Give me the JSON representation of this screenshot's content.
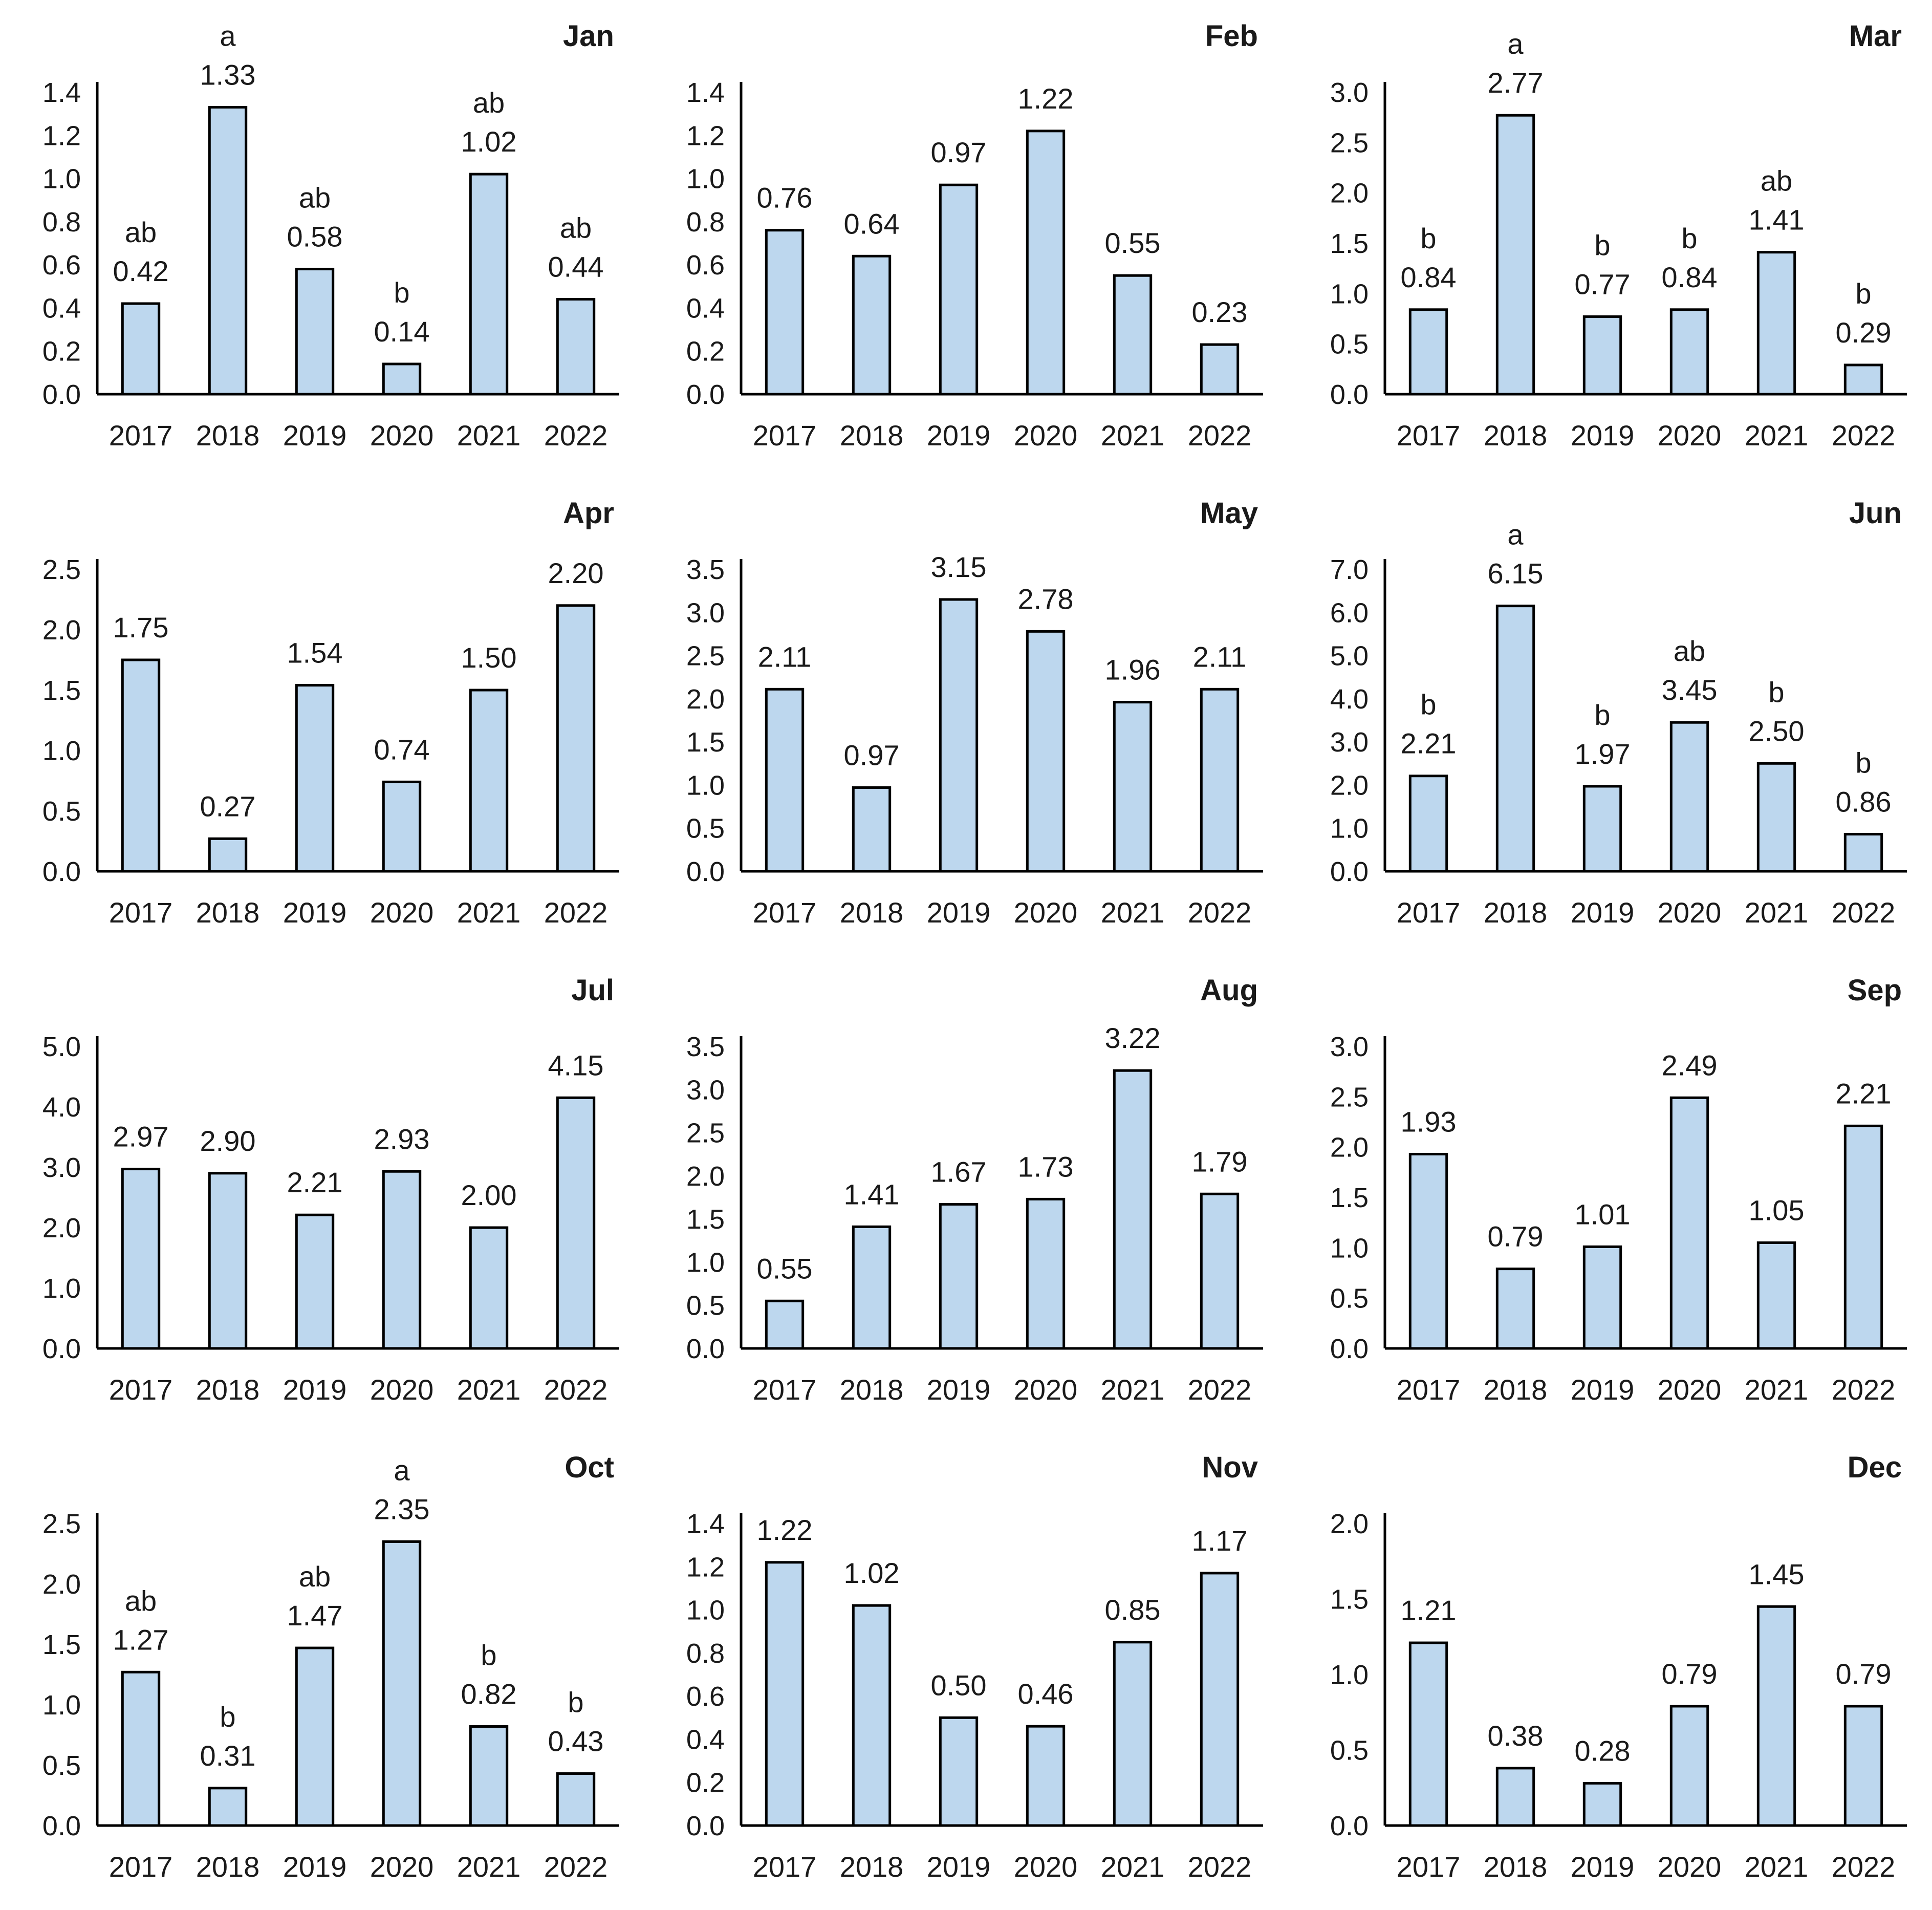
{
  "chart_data": [
    {
      "type": "bar",
      "title": "Jan",
      "categories": [
        "2017",
        "2018",
        "2019",
        "2020",
        "2021",
        "2022"
      ],
      "values": [
        0.42,
        1.33,
        0.58,
        0.14,
        1.02,
        0.44
      ],
      "value_labels": [
        "0.42",
        "1.33",
        "0.58",
        "0.14",
        "1.02",
        "0.44"
      ],
      "letters": [
        "ab",
        "a",
        "ab",
        "b",
        "ab",
        "ab"
      ],
      "ylim": [
        0,
        1.4
      ],
      "yticks": [
        "0.0",
        "0.2",
        "0.4",
        "0.6",
        "0.8",
        "1.0",
        "1.2",
        "1.4"
      ],
      "xlabel": "",
      "ylabel": ""
    },
    {
      "type": "bar",
      "title": "Feb",
      "categories": [
        "2017",
        "2018",
        "2019",
        "2020",
        "2021",
        "2022"
      ],
      "values": [
        0.76,
        0.64,
        0.97,
        1.22,
        0.55,
        0.23
      ],
      "value_labels": [
        "0.76",
        "0.64",
        "0.97",
        "1.22",
        "0.55",
        "0.23"
      ],
      "letters": [
        "",
        "",
        "",
        "",
        "",
        ""
      ],
      "ylim": [
        0,
        1.4
      ],
      "yticks": [
        "0.0",
        "0.2",
        "0.4",
        "0.6",
        "0.8",
        "1.0",
        "1.2",
        "1.4"
      ],
      "xlabel": "",
      "ylabel": ""
    },
    {
      "type": "bar",
      "title": "Mar",
      "categories": [
        "2017",
        "2018",
        "2019",
        "2020",
        "2021",
        "2022"
      ],
      "values": [
        0.84,
        2.77,
        0.77,
        0.84,
        1.41,
        0.29
      ],
      "value_labels": [
        "0.84",
        "2.77",
        "0.77",
        "0.84",
        "1.41",
        "0.29"
      ],
      "letters": [
        "b",
        "a",
        "b",
        "b",
        "ab",
        "b"
      ],
      "ylim": [
        0,
        3.0
      ],
      "yticks": [
        "0.0",
        "0.5",
        "1.0",
        "1.5",
        "2.0",
        "2.5",
        "3.0"
      ],
      "xlabel": "",
      "ylabel": ""
    },
    {
      "type": "bar",
      "title": "Apr",
      "categories": [
        "2017",
        "2018",
        "2019",
        "2020",
        "2021",
        "2022"
      ],
      "values": [
        1.75,
        0.27,
        1.54,
        0.74,
        1.5,
        2.2
      ],
      "value_labels": [
        "1.75",
        "0.27",
        "1.54",
        "0.74",
        "1.50",
        "2.20"
      ],
      "letters": [
        "",
        "",
        "",
        "",
        "",
        ""
      ],
      "ylim": [
        0,
        2.5
      ],
      "yticks": [
        "0.0",
        "0.5",
        "1.0",
        "1.5",
        "2.0",
        "2.5"
      ],
      "xlabel": "",
      "ylabel": ""
    },
    {
      "type": "bar",
      "title": "May",
      "categories": [
        "2017",
        "2018",
        "2019",
        "2020",
        "2021",
        "2022"
      ],
      "values": [
        2.11,
        0.97,
        3.15,
        2.78,
        1.96,
        2.11
      ],
      "value_labels": [
        "2.11",
        "0.97",
        "3.15",
        "2.78",
        "1.96",
        "2.11"
      ],
      "letters": [
        "",
        "",
        "",
        "",
        "",
        ""
      ],
      "ylim": [
        0,
        3.5
      ],
      "yticks": [
        "0.0",
        "0.5",
        "1.0",
        "1.5",
        "2.0",
        "2.5",
        "3.0",
        "3.5"
      ],
      "xlabel": "",
      "ylabel": ""
    },
    {
      "type": "bar",
      "title": "Jun",
      "categories": [
        "2017",
        "2018",
        "2019",
        "2020",
        "2021",
        "2022"
      ],
      "values": [
        2.21,
        6.15,
        1.97,
        3.45,
        2.5,
        0.86
      ],
      "value_labels": [
        "2.21",
        "6.15",
        "1.97",
        "3.45",
        "2.50",
        "0.86"
      ],
      "letters": [
        "b",
        "a",
        "b",
        "ab",
        "b",
        "b"
      ],
      "ylim": [
        0,
        7.0
      ],
      "yticks": [
        "0.0",
        "1.0",
        "2.0",
        "3.0",
        "4.0",
        "5.0",
        "6.0",
        "7.0"
      ],
      "xlabel": "",
      "ylabel": ""
    },
    {
      "type": "bar",
      "title": "Jul",
      "categories": [
        "2017",
        "2018",
        "2019",
        "2020",
        "2021",
        "2022"
      ],
      "values": [
        2.97,
        2.9,
        2.21,
        2.93,
        2.0,
        4.15
      ],
      "value_labels": [
        "2.97",
        "2.90",
        "2.21",
        "2.93",
        "2.00",
        "4.15"
      ],
      "letters": [
        "",
        "",
        "",
        "",
        "",
        ""
      ],
      "ylim": [
        0,
        5.0
      ],
      "yticks": [
        "0.0",
        "1.0",
        "2.0",
        "3.0",
        "4.0",
        "5.0"
      ],
      "xlabel": "",
      "ylabel": ""
    },
    {
      "type": "bar",
      "title": "Aug",
      "categories": [
        "2017",
        "2018",
        "2019",
        "2020",
        "2021",
        "2022"
      ],
      "values": [
        0.55,
        1.41,
        1.67,
        1.73,
        3.22,
        1.79
      ],
      "value_labels": [
        "0.55",
        "1.41",
        "1.67",
        "1.73",
        "3.22",
        "1.79"
      ],
      "letters": [
        "",
        "",
        "",
        "",
        "",
        ""
      ],
      "ylim": [
        0,
        3.5
      ],
      "yticks": [
        "0.0",
        "0.5",
        "1.0",
        "1.5",
        "2.0",
        "2.5",
        "3.0",
        "3.5"
      ],
      "xlabel": "",
      "ylabel": ""
    },
    {
      "type": "bar",
      "title": "Sep",
      "categories": [
        "2017",
        "2018",
        "2019",
        "2020",
        "2021",
        "2022"
      ],
      "values": [
        1.93,
        0.79,
        1.01,
        2.49,
        1.05,
        2.21
      ],
      "value_labels": [
        "1.93",
        "0.79",
        "1.01",
        "2.49",
        "1.05",
        "2.21"
      ],
      "letters": [
        "",
        "",
        "",
        "",
        "",
        ""
      ],
      "ylim": [
        0,
        3.0
      ],
      "yticks": [
        "0.0",
        "0.5",
        "1.0",
        "1.5",
        "2.0",
        "2.5",
        "3.0"
      ],
      "xlabel": "",
      "ylabel": ""
    },
    {
      "type": "bar",
      "title": "Oct",
      "categories": [
        "2017",
        "2018",
        "2019",
        "2020",
        "2021",
        "2022"
      ],
      "values": [
        1.27,
        0.31,
        1.47,
        2.35,
        0.82,
        0.43
      ],
      "value_labels": [
        "1.27",
        "0.31",
        "1.47",
        "2.35",
        "0.82",
        "0.43"
      ],
      "letters": [
        "ab",
        "b",
        "ab",
        "a",
        "b",
        "b"
      ],
      "ylim": [
        0,
        2.5
      ],
      "yticks": [
        "0.0",
        "0.5",
        "1.0",
        "1.5",
        "2.0",
        "2.5"
      ],
      "xlabel": "",
      "ylabel": ""
    },
    {
      "type": "bar",
      "title": "Nov",
      "categories": [
        "2017",
        "2018",
        "2019",
        "2020",
        "2021",
        "2022"
      ],
      "values": [
        1.22,
        1.02,
        0.5,
        0.46,
        0.85,
        1.17
      ],
      "value_labels": [
        "1.22",
        "1.02",
        "0.50",
        "0.46",
        "0.85",
        "1.17"
      ],
      "letters": [
        "",
        "",
        "",
        "",
        "",
        ""
      ],
      "ylim": [
        0,
        1.4
      ],
      "yticks": [
        "0.0",
        "0.2",
        "0.4",
        "0.6",
        "0.8",
        "1.0",
        "1.2",
        "1.4"
      ],
      "xlabel": "",
      "ylabel": ""
    },
    {
      "type": "bar",
      "title": "Dec",
      "categories": [
        "2017",
        "2018",
        "2019",
        "2020",
        "2021",
        "2022"
      ],
      "values": [
        1.21,
        0.38,
        0.28,
        0.79,
        1.45,
        0.79
      ],
      "value_labels": [
        "1.21",
        "0.38",
        "0.28",
        "0.79",
        "1.45",
        "0.79"
      ],
      "letters": [
        "",
        "",
        "",
        "",
        "",
        ""
      ],
      "ylim": [
        0,
        2.0
      ],
      "yticks": [
        "0.0",
        "0.5",
        "1.0",
        "1.5",
        "2.0"
      ],
      "xlabel": "",
      "ylabel": ""
    }
  ],
  "colors": {
    "bar_fill": "#bdd7ee",
    "bar_stroke": "#000000",
    "axis": "#000000",
    "text": "#1a1a1a"
  }
}
